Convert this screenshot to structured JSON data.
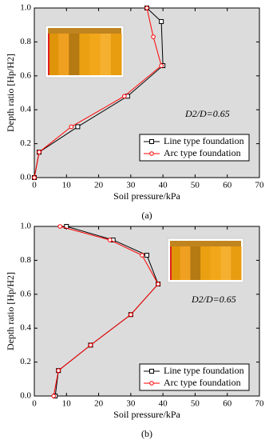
{
  "chart_data": [
    {
      "type": "line",
      "caption": "(a)",
      "x_label": "Soil pressure/kPa",
      "y_label": "Depth ratio [Hp/H2]",
      "annotation": "D2/D=0.65",
      "xlim": [
        0,
        70
      ],
      "xticks": [
        0,
        10,
        20,
        30,
        40,
        50,
        60,
        70
      ],
      "ylim": [
        0,
        1.0
      ],
      "yticks": [
        {
          "value": 0,
          "label": "0.0"
        },
        0.2,
        0.4,
        0.6,
        0.8,
        {
          "value": 1.0,
          "label": "1.0"
        }
      ],
      "series": [
        {
          "name": "Line type foundation",
          "color": "#000000",
          "marker": "square",
          "x": [
            0,
            1.5,
            13.5,
            29,
            40,
            39.5,
            35
          ],
          "y": [
            0,
            0.15,
            0.3,
            0.48,
            0.66,
            0.92,
            1.0
          ]
        },
        {
          "name": "Arc type foundation",
          "color": "#ff0000",
          "marker": "circle",
          "x": [
            0,
            1.5,
            11.5,
            28,
            39.5,
            37,
            35
          ],
          "y": [
            0,
            0.15,
            0.3,
            0.48,
            0.66,
            0.83,
            1.0
          ]
        }
      ]
    },
    {
      "type": "line",
      "caption": "(b)",
      "x_label": "Soil pressure/kPa",
      "y_label": "Depth ratio [Hp/H2]",
      "annotation": "D2/D=0.65",
      "xlim": [
        0,
        70
      ],
      "xticks": [
        0,
        10,
        20,
        30,
        40,
        50,
        60,
        70
      ],
      "ylim": [
        0,
        1.0
      ],
      "yticks": [
        {
          "value": 0,
          "label": "0.0"
        },
        0.2,
        0.4,
        0.6,
        0.8,
        {
          "value": 1.0,
          "label": "1.0"
        }
      ],
      "series": [
        {
          "name": "Line type foundation",
          "color": "#000000",
          "marker": "square",
          "x": [
            6.5,
            7.5,
            17.5,
            30,
            38.5,
            35,
            24.5,
            10
          ],
          "y": [
            0,
            0.15,
            0.3,
            0.48,
            0.66,
            0.83,
            0.92,
            1.0
          ]
        },
        {
          "name": "Arc type foundation",
          "color": "#ff0000",
          "marker": "circle",
          "x": [
            6,
            7.5,
            17.5,
            30,
            38.5,
            33.5,
            23.5,
            8
          ],
          "y": [
            0,
            0.15,
            0.3,
            0.48,
            0.66,
            0.83,
            0.92,
            1.0
          ]
        }
      ]
    }
  ]
}
